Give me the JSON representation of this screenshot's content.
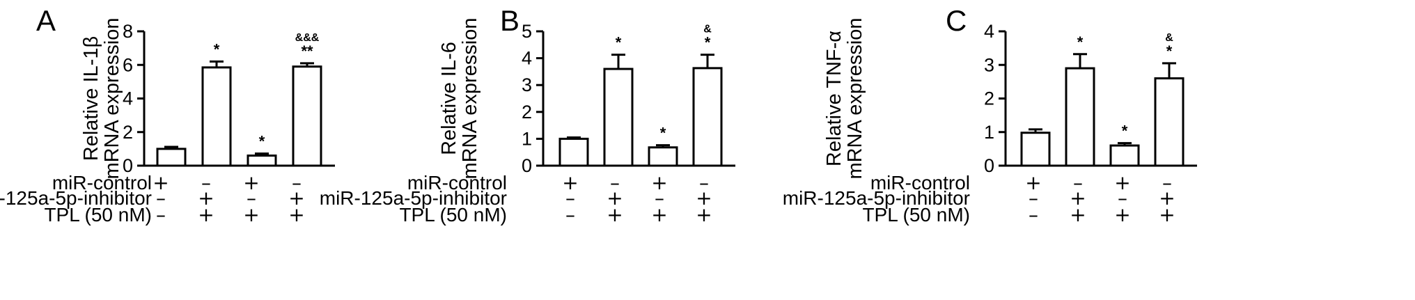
{
  "chart_data": [
    {
      "type": "bar",
      "panel": "A",
      "ylabel_line1": "Relative IL-1β",
      "ylabel_line2": "mRNA expression",
      "ylim": [
        0,
        8
      ],
      "yticks": [
        0,
        2,
        4,
        6,
        8
      ],
      "values": [
        1.0,
        5.85,
        0.6,
        5.9
      ],
      "errors": [
        0.12,
        0.35,
        0.12,
        0.2
      ],
      "sig_primary": [
        "",
        "*",
        "*",
        "**"
      ],
      "sig_secondary": [
        "",
        "",
        "",
        "&&&"
      ]
    },
    {
      "type": "bar",
      "panel": "B",
      "ylabel_line1": "Relative IL-6",
      "ylabel_line2": "mRNA expression",
      "ylim": [
        0,
        5
      ],
      "yticks": [
        0,
        1,
        2,
        3,
        4,
        5
      ],
      "values": [
        1.0,
        3.6,
        0.68,
        3.63
      ],
      "errors": [
        0.05,
        0.53,
        0.08,
        0.5
      ],
      "sig_primary": [
        "",
        "*",
        "*",
        "*"
      ],
      "sig_secondary": [
        "",
        "",
        "",
        "&"
      ]
    },
    {
      "type": "bar",
      "panel": "C",
      "ylabel_line1": "Relative TNF-α",
      "ylabel_line2": "mRNA expression",
      "ylim": [
        0,
        4
      ],
      "yticks": [
        0,
        1,
        2,
        3,
        4
      ],
      "values": [
        0.98,
        2.9,
        0.6,
        2.6
      ],
      "errors": [
        0.1,
        0.42,
        0.07,
        0.45
      ],
      "sig_primary": [
        "",
        "*",
        "*",
        "*"
      ],
      "sig_secondary": [
        "",
        "",
        "",
        "&"
      ]
    }
  ],
  "conditions": [
    {
      "label": "miR-control",
      "marks": [
        "+",
        "–",
        "+",
        "–"
      ]
    },
    {
      "label": "miR-125a-5p-inhibitor",
      "marks": [
        "–",
        "+",
        "–",
        "+"
      ]
    },
    {
      "label": "TPL (50 nM)",
      "marks": [
        "–",
        "+",
        "+",
        "+"
      ]
    }
  ]
}
